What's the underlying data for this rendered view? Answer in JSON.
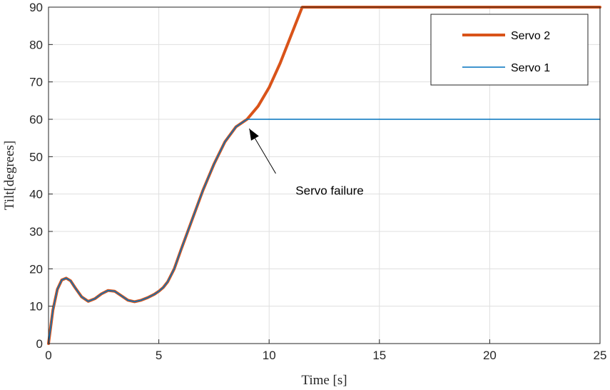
{
  "chart_data": {
    "type": "line",
    "xlabel": "Time [s]",
    "ylabel": "Tilt[degrees]",
    "xlim": [
      0,
      25
    ],
    "ylim": [
      0,
      90
    ],
    "xticks": [
      "0",
      "5",
      "10",
      "15",
      "20",
      "25"
    ],
    "yticks": [
      "0",
      "10",
      "20",
      "30",
      "40",
      "50",
      "60",
      "70",
      "80",
      "90"
    ],
    "grid": true,
    "legend_position": "top-right",
    "series": [
      {
        "name": "Servo 2",
        "color": "#D95319",
        "x": [
          0,
          0.2,
          0.4,
          0.6,
          0.8,
          1.0,
          1.2,
          1.5,
          1.8,
          2.1,
          2.4,
          2.7,
          3.0,
          3.3,
          3.6,
          3.9,
          4.2,
          4.5,
          4.8,
          5.0,
          5.2,
          5.4,
          5.7,
          6.0,
          6.5,
          7.0,
          7.5,
          8.0,
          8.5,
          9.0,
          9.5,
          10.0,
          10.5,
          11.0,
          11.5,
          12,
          15,
          20,
          25
        ],
        "y": [
          0,
          9,
          14.5,
          17,
          17.5,
          16.8,
          15,
          12.5,
          11.3,
          12,
          13.3,
          14.2,
          14,
          12.8,
          11.6,
          11.2,
          11.6,
          12.3,
          13.2,
          14,
          15,
          16.5,
          20,
          25,
          33,
          41,
          48,
          54,
          58,
          60,
          63.5,
          68.5,
          75,
          82.5,
          90,
          90,
          90,
          90,
          90
        ]
      },
      {
        "name": "Servo 1",
        "color": "#0072BD",
        "x": [
          0,
          0.2,
          0.4,
          0.6,
          0.8,
          1.0,
          1.2,
          1.5,
          1.8,
          2.1,
          2.4,
          2.7,
          3.0,
          3.3,
          3.6,
          3.9,
          4.2,
          4.5,
          4.8,
          5.0,
          5.2,
          5.4,
          5.7,
          6.0,
          6.5,
          7.0,
          7.5,
          8.0,
          8.5,
          9.0,
          12,
          15,
          20,
          25
        ],
        "y": [
          0,
          9,
          14.5,
          17,
          17.5,
          16.8,
          15,
          12.5,
          11.3,
          12,
          13.3,
          14.2,
          14,
          12.8,
          11.6,
          11.2,
          11.6,
          12.3,
          13.2,
          14,
          15,
          16.5,
          20,
          25,
          33,
          41,
          48,
          54,
          58,
          60,
          60,
          60,
          60,
          60
        ]
      }
    ],
    "annotations": [
      {
        "text": "Servo failure",
        "text_x": 11.2,
        "text_y": 41,
        "arrow_from": [
          10.3,
          45.5
        ],
        "arrow_to": [
          9.1,
          57.5
        ]
      }
    ]
  }
}
